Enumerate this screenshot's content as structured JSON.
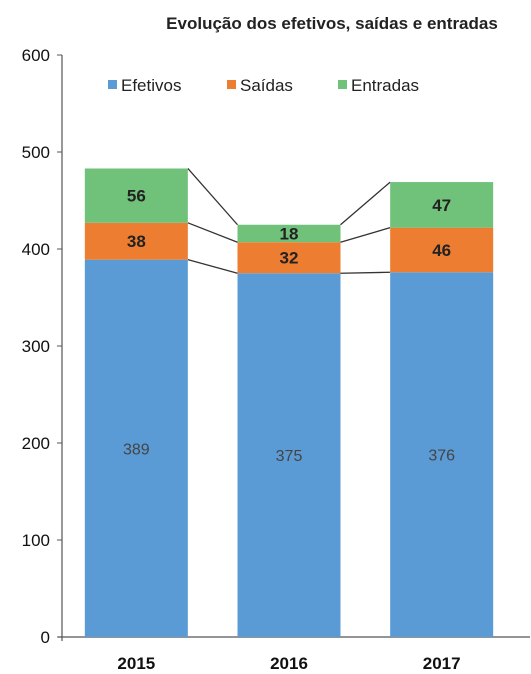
{
  "chart_data": {
    "type": "bar",
    "stacked": true,
    "title": "Evolução dos efetivos, saídas e entradas",
    "xlabel": "",
    "ylabel": "",
    "categories": [
      "2015",
      "2016",
      "2017"
    ],
    "ylim": [
      0,
      600
    ],
    "yticks": [
      "0",
      "100",
      "200",
      "300",
      "400",
      "500",
      "600"
    ],
    "series": [
      {
        "name": "Efetivos",
        "values": [
          389,
          375,
          376
        ],
        "color": "#5b9bd5"
      },
      {
        "name": "Saídas",
        "values": [
          38,
          32,
          46
        ],
        "color": "#ed7d31"
      },
      {
        "name": "Entradas",
        "values": [
          56,
          18,
          47
        ],
        "color": "#70c17a"
      }
    ],
    "legend_position": "top",
    "grid": false
  }
}
